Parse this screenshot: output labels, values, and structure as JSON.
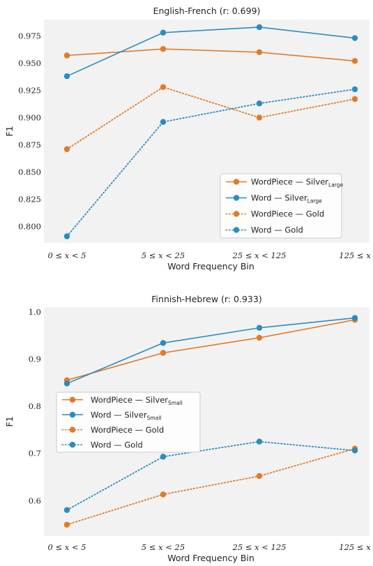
{
  "chart_data": [
    {
      "type": "line",
      "title": "English-French (r: 0.699)",
      "xlabel": "Word Frequency Bin",
      "ylabel": "F1",
      "categories": [
        "0 ≤ x < 5",
        "5 ≤ x < 25",
        "25 ≤ x < 125",
        "125 ≤ x"
      ],
      "ylim": [
        0.785,
        0.99
      ],
      "yticks": [
        0.8,
        0.825,
        0.85,
        0.875,
        0.9,
        0.925,
        0.95,
        0.975
      ],
      "ytick_labels": [
        "0.800",
        "0.825",
        "0.850",
        "0.875",
        "0.900",
        "0.925",
        "0.950",
        "0.975"
      ],
      "grid": false,
      "legend_position": "bottom-right",
      "series": [
        {
          "name": "WordPiece — Silver",
          "name_sub": "Large",
          "color": "#e07b2a",
          "style": "solid",
          "values": [
            0.957,
            0.963,
            0.96,
            0.952
          ]
        },
        {
          "name": "Word — Silver",
          "name_sub": "Large",
          "color": "#2b8cbe",
          "style": "solid",
          "values": [
            0.938,
            0.978,
            0.983,
            0.973
          ]
        },
        {
          "name": "WordPiece — Gold",
          "name_sub": "",
          "color": "#e07b2a",
          "style": "dotted",
          "values": [
            0.871,
            0.928,
            0.9,
            0.917
          ]
        },
        {
          "name": "Word — Gold",
          "name_sub": "",
          "color": "#2b8cbe",
          "style": "dotted",
          "values": [
            0.791,
            0.896,
            0.913,
            0.926
          ]
        }
      ]
    },
    {
      "type": "line",
      "title": "Finnish-Hebrew (r: 0.933)",
      "xlabel": "Word Frequency Bin",
      "ylabel": "F1",
      "categories": [
        "0 ≤ x < 5",
        "5 ≤ x < 25",
        "25 ≤ x < 125",
        "125 ≤ x"
      ],
      "ylim": [
        0.525,
        1.01
      ],
      "yticks": [
        0.6,
        0.7,
        0.8,
        0.9,
        1.0
      ],
      "ytick_labels": [
        "0.6",
        "0.7",
        "0.8",
        "0.9",
        "1.0"
      ],
      "grid": false,
      "legend_position": "center-left",
      "series": [
        {
          "name": "WordPiece — Silver",
          "name_sub": "Small",
          "color": "#e07b2a",
          "style": "solid",
          "values": [
            0.855,
            0.913,
            0.945,
            0.983
          ]
        },
        {
          "name": "Word — Silver",
          "name_sub": "Small",
          "color": "#2b8cbe",
          "style": "solid",
          "values": [
            0.848,
            0.934,
            0.966,
            0.987
          ]
        },
        {
          "name": "WordPiece — Gold",
          "name_sub": "",
          "color": "#e07b2a",
          "style": "dotted",
          "values": [
            0.549,
            0.613,
            0.652,
            0.71
          ]
        },
        {
          "name": "Word — Gold",
          "name_sub": "",
          "color": "#2b8cbe",
          "style": "dotted",
          "values": [
            0.58,
            0.693,
            0.725,
            0.706
          ]
        }
      ]
    }
  ]
}
